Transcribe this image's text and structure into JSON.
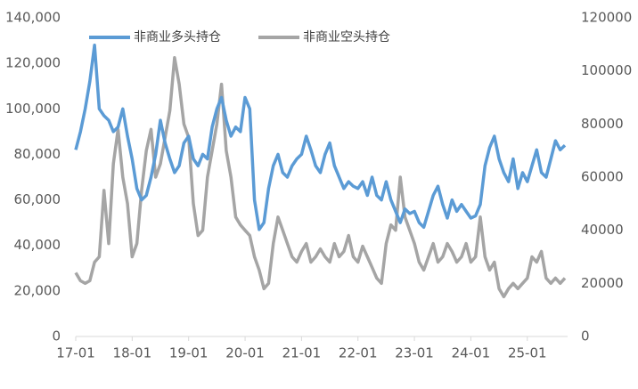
{
  "chart_data": {
    "type": "line",
    "x": [
      "17-01",
      "17-02",
      "17-03",
      "17-04",
      "17-05",
      "17-06",
      "17-07",
      "17-08",
      "17-09",
      "17-10",
      "17-11",
      "17-12",
      "18-01",
      "18-02",
      "18-03",
      "18-04",
      "18-05",
      "18-06",
      "18-07",
      "18-08",
      "18-09",
      "18-10",
      "18-11",
      "18-12",
      "19-01",
      "19-02",
      "19-03",
      "19-04",
      "19-05",
      "19-06",
      "19-07",
      "19-08",
      "19-09",
      "19-10",
      "19-11",
      "19-12",
      "20-01",
      "20-02",
      "20-03",
      "20-04",
      "20-05",
      "20-06",
      "20-07",
      "20-08",
      "20-09",
      "20-10",
      "20-11",
      "20-12",
      "21-01",
      "21-02",
      "21-03",
      "21-04",
      "21-05",
      "21-06",
      "21-07",
      "21-08",
      "21-09",
      "21-10",
      "21-11",
      "21-12",
      "22-01",
      "22-02",
      "22-03",
      "22-04",
      "22-05",
      "22-06",
      "22-07",
      "22-08",
      "22-09",
      "22-10",
      "22-11",
      "22-12",
      "23-01",
      "23-02",
      "23-03",
      "23-04",
      "23-05",
      "23-06",
      "23-07",
      "23-08",
      "23-09",
      "23-10",
      "23-11",
      "23-12",
      "24-01",
      "24-02",
      "24-03",
      "24-04",
      "24-05",
      "24-06",
      "24-07",
      "24-08",
      "24-09",
      "24-10",
      "24-11",
      "24-12",
      "25-01",
      "25-02",
      "25-03",
      "25-04",
      "25-05",
      "25-06",
      "25-07",
      "25-08",
      "25-09"
    ],
    "xticks": [
      "17-01",
      "18-01",
      "19-01",
      "20-01",
      "21-01",
      "22-01",
      "23-01",
      "24-01",
      "25-01"
    ],
    "series": [
      {
        "name": "非商业多头持仓",
        "color": "#5b9bd5",
        "values": [
          82000,
          90000,
          100000,
          112000,
          128000,
          100000,
          97000,
          95000,
          90000,
          92000,
          100000,
          88000,
          78000,
          65000,
          60000,
          62000,
          70000,
          80000,
          95000,
          85000,
          78000,
          72000,
          75000,
          85000,
          88000,
          78000,
          75000,
          80000,
          78000,
          92000,
          100000,
          105000,
          95000,
          88000,
          92000,
          90000,
          105000,
          100000,
          60000,
          47000,
          50000,
          65000,
          75000,
          80000,
          72000,
          70000,
          75000,
          78000,
          80000,
          88000,
          82000,
          75000,
          72000,
          80000,
          85000,
          75000,
          70000,
          65000,
          68000,
          66000,
          65000,
          68000,
          62000,
          70000,
          62000,
          60000,
          68000,
          60000,
          55000,
          50000,
          56000,
          54000,
          55000,
          50000,
          48000,
          55000,
          62000,
          66000,
          58000,
          52000,
          60000,
          55000,
          58000,
          55000,
          52000,
          53000,
          58000,
          75000,
          83000,
          88000,
          78000,
          72000,
          68000,
          78000,
          65000,
          72000,
          68000,
          75000,
          82000,
          72000,
          70000,
          78000,
          86000,
          82000,
          84000
        ]
      },
      {
        "name": "非商业空头持仓",
        "color": "#a5a5a5",
        "axis": "y2",
        "values": [
          24000,
          21000,
          20000,
          21000,
          28000,
          30000,
          55000,
          35000,
          65000,
          78000,
          60000,
          50000,
          30000,
          35000,
          55000,
          70000,
          78000,
          60000,
          65000,
          75000,
          85000,
          105000,
          95000,
          80000,
          75000,
          50000,
          38000,
          40000,
          60000,
          70000,
          80000,
          95000,
          70000,
          60000,
          45000,
          42000,
          40000,
          38000,
          30000,
          25000,
          18000,
          20000,
          35000,
          45000,
          40000,
          35000,
          30000,
          28000,
          32000,
          35000,
          28000,
          30000,
          33000,
          30000,
          28000,
          35000,
          30000,
          32000,
          38000,
          30000,
          28000,
          34000,
          30000,
          26000,
          22000,
          20000,
          35000,
          42000,
          40000,
          60000,
          45000,
          40000,
          35000,
          28000,
          25000,
          30000,
          35000,
          28000,
          30000,
          35000,
          32000,
          28000,
          30000,
          35000,
          28000,
          30000,
          45000,
          30000,
          25000,
          28000,
          18000,
          15000,
          18000,
          20000,
          18000,
          20000,
          22000,
          30000,
          28000,
          32000,
          22000,
          20000,
          22000,
          20000,
          22000
        ]
      }
    ],
    "ylim": [
      0,
      140000
    ],
    "yticks": [
      0,
      {
        "value": 20000,
        "label": "20,000"
      },
      {
        "value": 40000,
        "label": "40,000"
      },
      {
        "value": 60000,
        "label": "60,000"
      },
      {
        "value": 80000,
        "label": "80,000"
      },
      {
        "value": 100000,
        "label": "100,000"
      },
      {
        "value": 120000,
        "label": "120,000"
      },
      {
        "value": 140000,
        "label": "140,000"
      }
    ],
    "y2lim": [
      0,
      120000
    ],
    "y2ticks": [
      0,
      20000,
      40000,
      60000,
      80000,
      100000,
      120000
    ],
    "legend": "top"
  }
}
